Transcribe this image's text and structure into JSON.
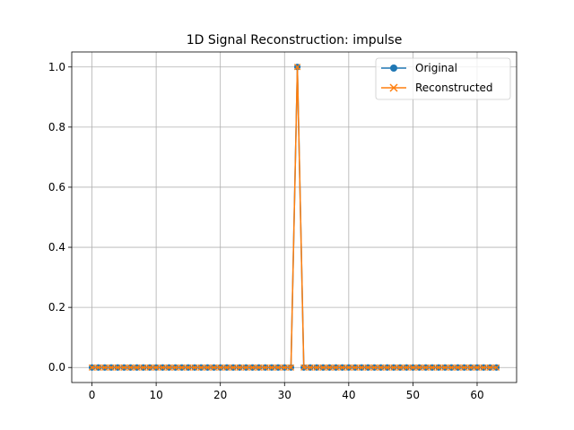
{
  "chart_data": {
    "type": "line",
    "title": "1D Signal Reconstruction: impulse",
    "xlabel": "",
    "ylabel": "",
    "xlim": [
      -3.15,
      66.15
    ],
    "ylim": [
      -0.05,
      1.05
    ],
    "xticks": [
      0,
      10,
      20,
      30,
      40,
      50,
      60
    ],
    "yticks": [
      0.0,
      0.2,
      0.4,
      0.6,
      0.8,
      1.0
    ],
    "xtick_labels": [
      "0",
      "10",
      "20",
      "30",
      "40",
      "50",
      "60"
    ],
    "ytick_labels": [
      "0.0",
      "0.2",
      "0.4",
      "0.6",
      "0.8",
      "1.0"
    ],
    "grid": true,
    "legend_position": "top-right",
    "n_points": 64,
    "x": [
      0,
      1,
      2,
      3,
      4,
      5,
      6,
      7,
      8,
      9,
      10,
      11,
      12,
      13,
      14,
      15,
      16,
      17,
      18,
      19,
      20,
      21,
      22,
      23,
      24,
      25,
      26,
      27,
      28,
      29,
      30,
      31,
      32,
      33,
      34,
      35,
      36,
      37,
      38,
      39,
      40,
      41,
      42,
      43,
      44,
      45,
      46,
      47,
      48,
      49,
      50,
      51,
      52,
      53,
      54,
      55,
      56,
      57,
      58,
      59,
      60,
      61,
      62,
      63
    ],
    "series": [
      {
        "name": "Original",
        "color": "#1f77b4",
        "marker": "circle",
        "values": [
          0,
          0,
          0,
          0,
          0,
          0,
          0,
          0,
          0,
          0,
          0,
          0,
          0,
          0,
          0,
          0,
          0,
          0,
          0,
          0,
          0,
          0,
          0,
          0,
          0,
          0,
          0,
          0,
          0,
          0,
          0,
          0,
          1,
          0,
          0,
          0,
          0,
          0,
          0,
          0,
          0,
          0,
          0,
          0,
          0,
          0,
          0,
          0,
          0,
          0,
          0,
          0,
          0,
          0,
          0,
          0,
          0,
          0,
          0,
          0,
          0,
          0,
          0,
          0
        ]
      },
      {
        "name": "Reconstructed",
        "color": "#ff7f0e",
        "marker": "x",
        "values": [
          0,
          0,
          0,
          0,
          0,
          0,
          0,
          0,
          0,
          0,
          0,
          0,
          0,
          0,
          0,
          0,
          0,
          0,
          0,
          0,
          0,
          0,
          0,
          0,
          0,
          0,
          0,
          0,
          0,
          0,
          0,
          0,
          1,
          0,
          0,
          0,
          0,
          0,
          0,
          0,
          0,
          0,
          0,
          0,
          0,
          0,
          0,
          0,
          0,
          0,
          0,
          0,
          0,
          0,
          0,
          0,
          0,
          0,
          0,
          0,
          0,
          0,
          0,
          0
        ]
      }
    ]
  }
}
